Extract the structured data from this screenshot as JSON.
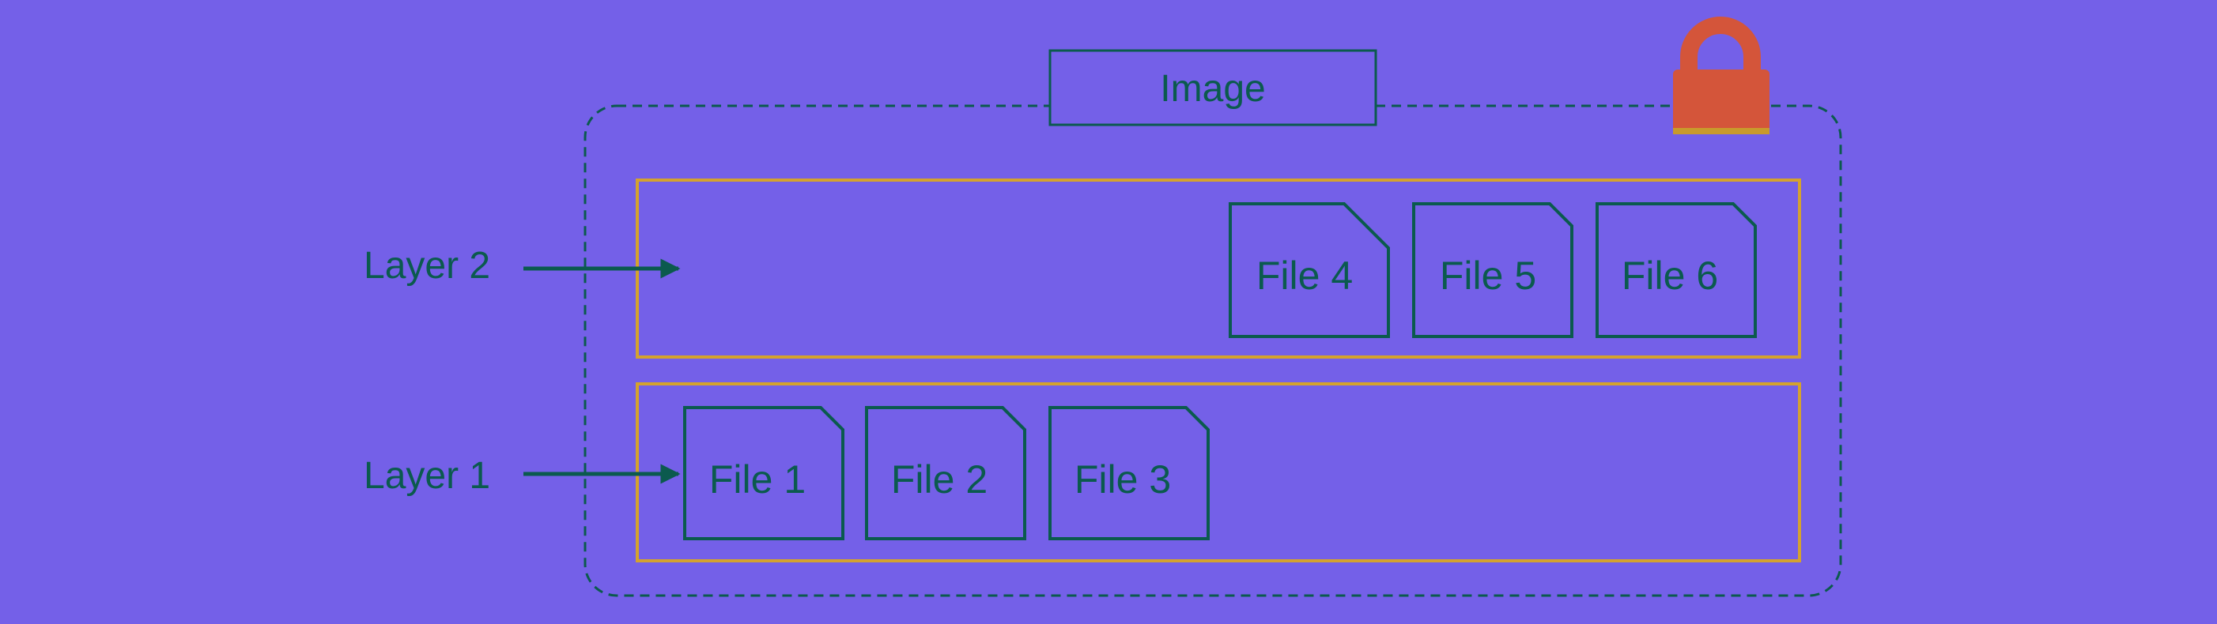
{
  "diagram": {
    "title": "Image",
    "layers": [
      {
        "label": "Layer 2",
        "files": [
          "File 4",
          "File 5",
          "File 6"
        ]
      },
      {
        "label": "Layer 1",
        "files": [
          "File 1",
          "File 2",
          "File 3"
        ]
      }
    ],
    "icons": {
      "lock": "lock-icon"
    },
    "colors": {
      "background": "#7460E8",
      "stroke": "#0B5A4E",
      "layer_border": "#D4A22E",
      "lock": "#D4553A"
    }
  }
}
